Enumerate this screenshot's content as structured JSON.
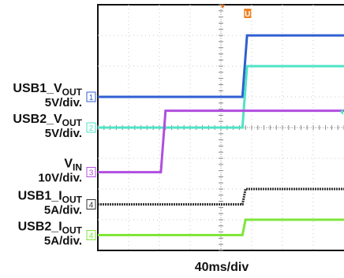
{
  "chart_data": {
    "type": "line",
    "title": "",
    "xlabel": "40ms/div",
    "ylabel": "",
    "grid": true,
    "trigger_marker": "U",
    "x_divisions": 8,
    "y_divisions": 8,
    "series": [
      {
        "name_main": "USB1_V",
        "name_sub": "OUT",
        "scale": "5V/div.",
        "channel": "1",
        "color": "#2f5fd0",
        "x": [
          0,
          4.7,
          4.85,
          8
        ],
        "y": [
          5.0,
          5.0,
          7.0,
          7.0
        ]
      },
      {
        "name_main": "USB2_V",
        "name_sub": "OUT",
        "scale": "5V/div.",
        "channel": "2",
        "color": "#4fe3c6",
        "x": [
          0,
          4.7,
          4.85,
          8
        ],
        "y": [
          4.0,
          4.0,
          6.0,
          6.0
        ]
      },
      {
        "name_main": "V",
        "name_sub": "IN",
        "scale": "10V/div.",
        "channel": "3",
        "color": "#b04ee0",
        "x": [
          0,
          2.05,
          2.2,
          8
        ],
        "y": [
          2.55,
          2.55,
          4.55,
          4.55
        ]
      },
      {
        "name_main": "USB1_I",
        "name_sub": "OUT",
        "scale": "5A/div.",
        "channel": "4",
        "color": "#333333",
        "x": [
          0,
          4.7,
          4.8,
          8
        ],
        "y": [
          1.5,
          1.5,
          2.0,
          2.0
        ]
      },
      {
        "name_main": "USB2_I",
        "name_sub": "OUT",
        "scale": "5A/div.",
        "channel": "4",
        "color": "#7ee63a",
        "x": [
          0,
          4.7,
          4.8,
          8
        ],
        "y": [
          0.5,
          0.5,
          1.0,
          1.0
        ]
      }
    ]
  }
}
